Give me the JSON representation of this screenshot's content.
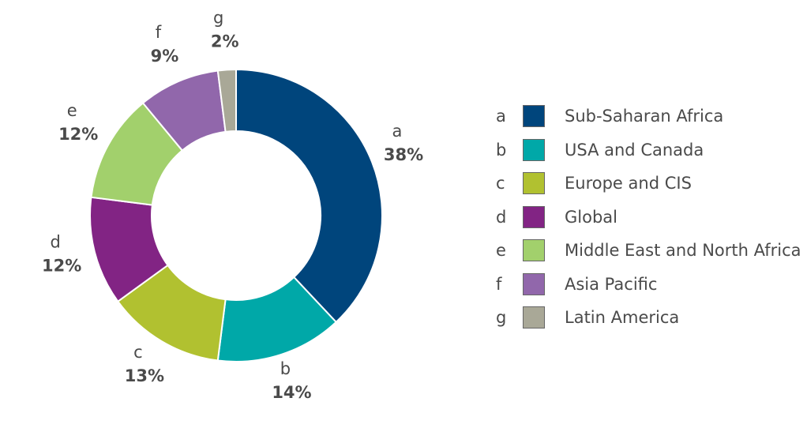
{
  "chart_data": {
    "type": "pie",
    "donut": true,
    "start": "top",
    "direction": "clockwise",
    "legend_placement": "right",
    "slices": [
      {
        "key": "a",
        "label": "Sub-Saharan Africa",
        "value": 38,
        "pct_label": "38%",
        "color": "#00457c"
      },
      {
        "key": "b",
        "label": "USA and Canada",
        "value": 14,
        "pct_label": "14%",
        "color": "#00a8a8"
      },
      {
        "key": "c",
        "label": "Europe and CIS",
        "value": 13,
        "pct_label": "13%",
        "color": "#b1c130"
      },
      {
        "key": "d",
        "label": "Global",
        "value": 12,
        "pct_label": "12%",
        "color": "#822484"
      },
      {
        "key": "e",
        "label": "Middle East and North Africa",
        "value": 12,
        "pct_label": "12%",
        "color": "#a2d06c"
      },
      {
        "key": "f",
        "label": "Asia Pacific",
        "value": 9,
        "pct_label": "9%",
        "color": "#9167ab"
      },
      {
        "key": "g",
        "label": "Latin America",
        "value": 2,
        "pct_label": "2%",
        "color": "#a9a897"
      }
    ]
  }
}
